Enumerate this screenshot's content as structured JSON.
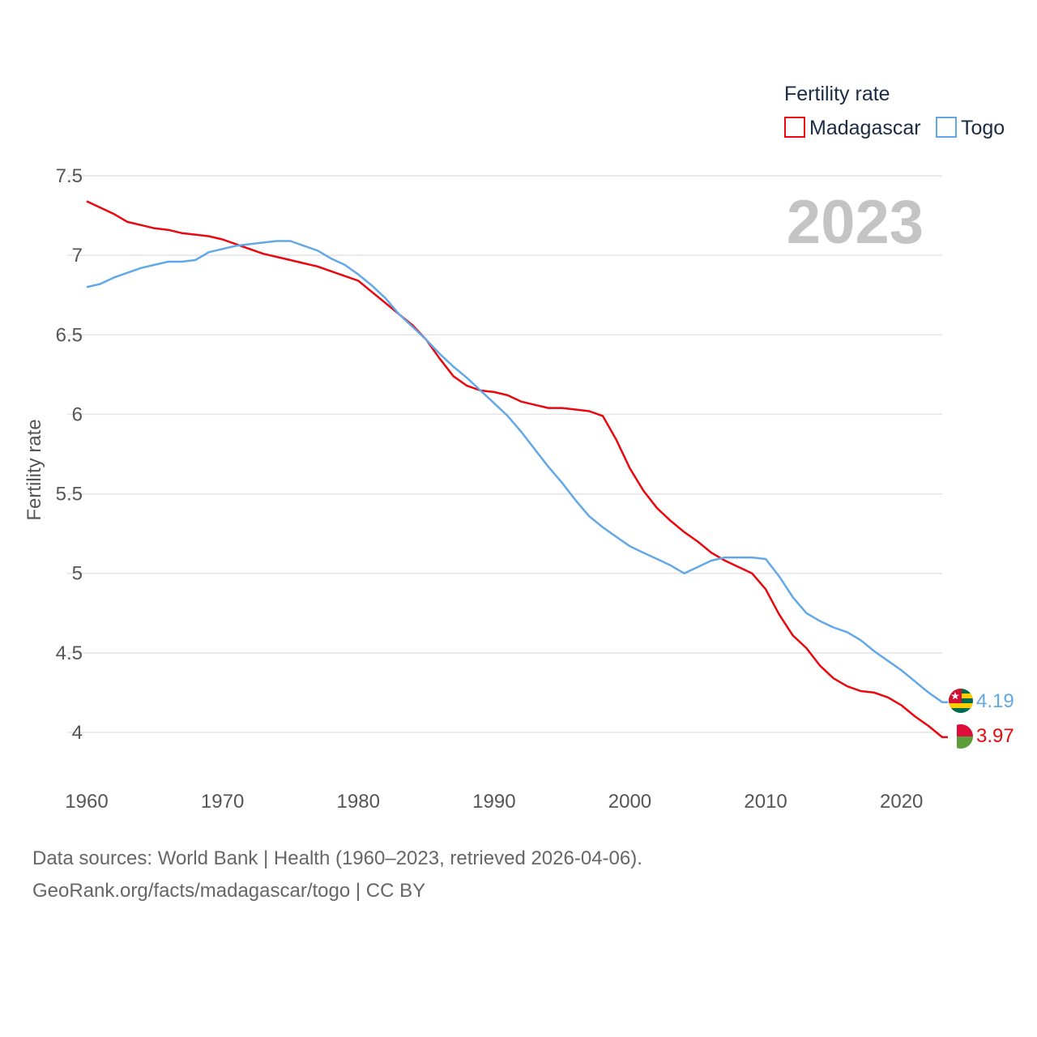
{
  "chart_data": {
    "type": "line",
    "title": "",
    "ylabel": "Fertility rate",
    "xlabel": "",
    "ylim": [
      3.5,
      7.5
    ],
    "y_ticks": [
      4,
      4.5,
      5,
      5.5,
      6,
      6.5,
      7,
      7.5
    ],
    "y_tick_labels": [
      "4",
      "4.5",
      "5",
      "5.5",
      "6",
      "6.5",
      "7",
      "7.5"
    ],
    "xlim": [
      1960,
      2023
    ],
    "x_ticks": [
      1960,
      1970,
      1980,
      1990,
      2000,
      2010,
      2020
    ],
    "x_tick_labels": [
      "1960",
      "1970",
      "1980",
      "1990",
      "2000",
      "2010",
      "2020"
    ],
    "grid": true,
    "current_year": "2023",
    "legend": {
      "title": "Fertility rate",
      "placement": "top-right"
    },
    "x": [
      1960,
      1961,
      1962,
      1963,
      1964,
      1965,
      1966,
      1967,
      1968,
      1969,
      1970,
      1971,
      1972,
      1973,
      1974,
      1975,
      1976,
      1977,
      1978,
      1979,
      1980,
      1981,
      1982,
      1983,
      1984,
      1985,
      1986,
      1987,
      1988,
      1989,
      1990,
      1991,
      1992,
      1993,
      1994,
      1995,
      1996,
      1997,
      1998,
      1999,
      2000,
      2001,
      2002,
      2003,
      2004,
      2005,
      2006,
      2007,
      2008,
      2009,
      2010,
      2011,
      2012,
      2013,
      2014,
      2015,
      2016,
      2017,
      2018,
      2019,
      2020,
      2021,
      2022,
      2023
    ],
    "series": [
      {
        "name": "Madagascar",
        "color": "#e8080e",
        "end_label": "3.97",
        "values": [
          7.34,
          7.3,
          7.26,
          7.21,
          7.19,
          7.17,
          7.16,
          7.14,
          7.13,
          7.12,
          7.1,
          7.07,
          7.04,
          7.01,
          6.99,
          6.97,
          6.95,
          6.93,
          6.9,
          6.87,
          6.84,
          6.77,
          6.7,
          6.63,
          6.56,
          6.47,
          6.35,
          6.24,
          6.18,
          6.15,
          6.14,
          6.12,
          6.08,
          6.06,
          6.04,
          6.04,
          6.03,
          6.02,
          5.99,
          5.84,
          5.66,
          5.52,
          5.41,
          5.33,
          5.26,
          5.2,
          5.13,
          5.08,
          5.04,
          5.0,
          4.9,
          4.74,
          4.61,
          4.53,
          4.42,
          4.34,
          4.29,
          4.26,
          4.25,
          4.22,
          4.17,
          4.1,
          4.04,
          3.97
        ]
      },
      {
        "name": "Togo",
        "color": "#62a8e8",
        "end_label": "4.19",
        "values": [
          6.8,
          6.82,
          6.86,
          6.89,
          6.92,
          6.94,
          6.96,
          6.96,
          6.97,
          7.02,
          7.04,
          7.06,
          7.07,
          7.08,
          7.09,
          7.09,
          7.06,
          7.03,
          6.98,
          6.94,
          6.88,
          6.81,
          6.73,
          6.63,
          6.55,
          6.47,
          6.38,
          6.3,
          6.23,
          6.15,
          6.07,
          5.99,
          5.89,
          5.78,
          5.67,
          5.57,
          5.46,
          5.36,
          5.29,
          5.23,
          5.17,
          5.13,
          5.09,
          5.05,
          5.0,
          5.04,
          5.08,
          5.1,
          5.1,
          5.1,
          5.09,
          4.98,
          4.85,
          4.75,
          4.7,
          4.66,
          4.63,
          4.58,
          4.51,
          4.45,
          4.39,
          4.32,
          4.25,
          4.19
        ]
      }
    ]
  },
  "sources": {
    "line1": "Data sources: World Bank | Health (1960–2023, retrieved 2026-04-06).",
    "line2": "GeoRank.org/facts/madagascar/togo | CC BY"
  }
}
